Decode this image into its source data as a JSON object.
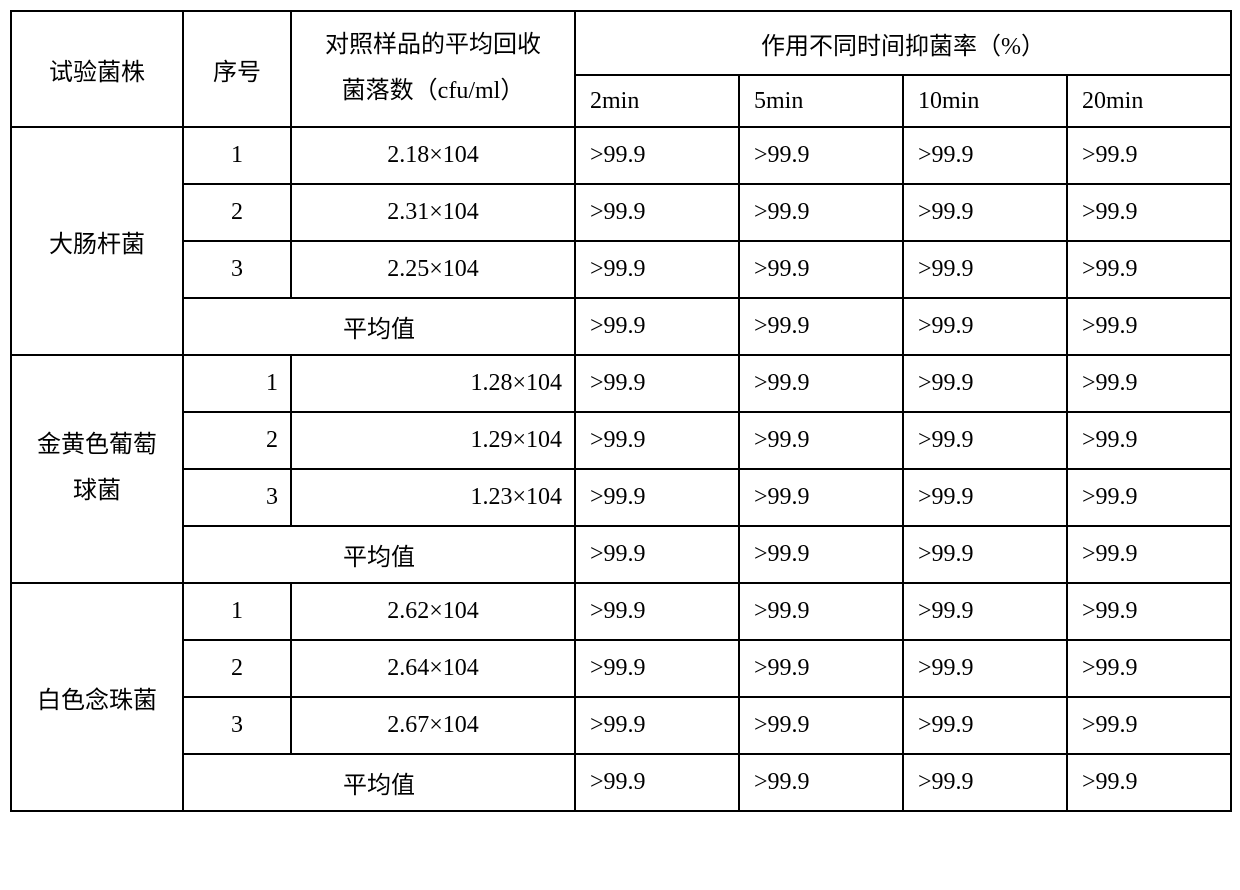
{
  "headers": {
    "strain": "试验菌株",
    "seq": "序号",
    "recovery_l1": "对照样品的平均回收",
    "recovery_l2": "菌落数（cfu/ml）",
    "time_group": "作用不同时间抑菌率（%）",
    "t2": "2min",
    "t5": "5min",
    "t10": "10min",
    "t20": "20min",
    "avg_label": "平均值"
  },
  "groups": [
    {
      "name": "大肠杆菌",
      "rows": [
        {
          "seq": "1",
          "recovery": "2.18×104",
          "v2": ">99.9",
          "v5": ">99.9",
          "v10": ">99.9",
          "v20": ">99.9"
        },
        {
          "seq": "2",
          "recovery": "2.31×104",
          "v2": ">99.9",
          "v5": ">99.9",
          "v10": ">99.9",
          "v20": ">99.9"
        },
        {
          "seq": "3",
          "recovery": "2.25×104",
          "v2": ">99.9",
          "v5": ">99.9",
          "v10": ">99.9",
          "v20": ">99.9"
        }
      ],
      "avg": {
        "v2": ">99.9",
        "v5": ">99.9",
        "v10": ">99.9",
        "v20": ">99.9"
      }
    },
    {
      "name": "金黄色葡萄球菌",
      "name_l1": "金黄色葡萄",
      "name_l2": "球菌",
      "rows": [
        {
          "seq": "1",
          "recovery": "1.28×104",
          "v2": ">99.9",
          "v5": ">99.9",
          "v10": ">99.9",
          "v20": ">99.9"
        },
        {
          "seq": "2",
          "recovery": "1.29×104",
          "v2": ">99.9",
          "v5": ">99.9",
          "v10": ">99.9",
          "v20": ">99.9"
        },
        {
          "seq": "3",
          "recovery": "1.23×104",
          "v2": ">99.9",
          "v5": ">99.9",
          "v10": ">99.9",
          "v20": ">99.9"
        }
      ],
      "avg": {
        "v2": ">99.9",
        "v5": ">99.9",
        "v10": ">99.9",
        "v20": ">99.9"
      }
    },
    {
      "name": "白色念珠菌",
      "rows": [
        {
          "seq": "1",
          "recovery": "2.62×104",
          "v2": ">99.9",
          "v5": ">99.9",
          "v10": ">99.9",
          "v20": ">99.9"
        },
        {
          "seq": "2",
          "recovery": "2.64×104",
          "v2": ">99.9",
          "v5": ">99.9",
          "v10": ">99.9",
          "v20": ">99.9"
        },
        {
          "seq": "3",
          "recovery": "2.67×104",
          "v2": ">99.9",
          "v5": ">99.9",
          "v10": ">99.9",
          "v20": ">99.9"
        }
      ],
      "avg": {
        "v2": ">99.9",
        "v5": ">99.9",
        "v10": ">99.9",
        "v20": ">99.9"
      }
    }
  ],
  "style": {
    "border_color": "#000000",
    "font_family": "SimSun",
    "cell_fontsize": 24,
    "background": "#ffffff"
  }
}
